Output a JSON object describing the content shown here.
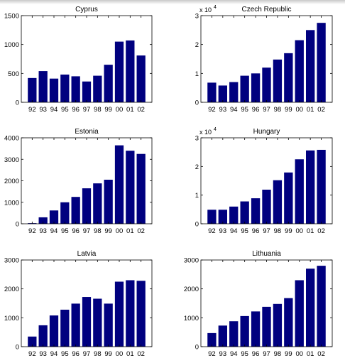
{
  "colors": {
    "bar": "#00007f",
    "axis": "#000000",
    "background": "#ffffff"
  },
  "chart_data": [
    {
      "type": "bar",
      "title": "Cyprus",
      "categories": [
        "92",
        "93",
        "94",
        "95",
        "96",
        "97",
        "98",
        "99",
        "00",
        "01",
        "02"
      ],
      "values": [
        420,
        540,
        410,
        480,
        450,
        360,
        460,
        650,
        1050,
        1070,
        810
      ],
      "ylim": [
        0,
        1500
      ],
      "yticks": [
        0,
        500,
        1000,
        1500
      ],
      "ytick_labels": [
        "0",
        "500",
        "1000",
        "1500"
      ],
      "exponent_label": "",
      "grid": false,
      "xlabel": "",
      "ylabel": ""
    },
    {
      "type": "bar",
      "title": "Czech Republic",
      "categories": [
        "92",
        "93",
        "94",
        "95",
        "96",
        "97",
        "98",
        "99",
        "00",
        "01",
        "02"
      ],
      "values": [
        6800,
        5800,
        7000,
        9200,
        10000,
        12000,
        14800,
        17000,
        21500,
        25000,
        27500
      ],
      "ylim": [
        0,
        30000
      ],
      "yticks": [
        0,
        10000,
        20000,
        30000
      ],
      "ytick_labels": [
        "0",
        "1",
        "2",
        "3"
      ],
      "exponent_label": "x 10",
      "exponent_power": "4",
      "grid": false,
      "xlabel": "",
      "ylabel": ""
    },
    {
      "type": "bar",
      "title": "Estonia",
      "categories": [
        "92",
        "93",
        "94",
        "95",
        "96",
        "97",
        "98",
        "99",
        "00",
        "01",
        "02"
      ],
      "values": [
        30,
        300,
        620,
        1000,
        1250,
        1650,
        1880,
        2050,
        3650,
        3400,
        3250
      ],
      "ylim": [
        0,
        4000
      ],
      "yticks": [
        0,
        1000,
        2000,
        3000,
        4000
      ],
      "ytick_labels": [
        "0",
        "1000",
        "2000",
        "3000",
        "4000"
      ],
      "exponent_label": "",
      "grid": false,
      "xlabel": "",
      "ylabel": ""
    },
    {
      "type": "bar",
      "title": "Hungary",
      "categories": [
        "92",
        "93",
        "94",
        "95",
        "96",
        "97",
        "98",
        "99",
        "00",
        "01",
        "02"
      ],
      "values": [
        4900,
        4900,
        6000,
        7800,
        8900,
        11900,
        15200,
        17900,
        22500,
        25600,
        25800
      ],
      "ylim": [
        0,
        30000
      ],
      "yticks": [
        0,
        10000,
        20000,
        30000
      ],
      "ytick_labels": [
        "0",
        "1",
        "2",
        "3"
      ],
      "exponent_label": "x 10",
      "exponent_power": "4",
      "grid": false,
      "xlabel": "",
      "ylabel": ""
    },
    {
      "type": "bar",
      "title": "Latvia",
      "categories": [
        "92",
        "93",
        "94",
        "95",
        "96",
        "97",
        "98",
        "99",
        "00",
        "01",
        "02"
      ],
      "values": [
        350,
        740,
        1080,
        1280,
        1490,
        1720,
        1660,
        1490,
        2250,
        2300,
        2280
      ],
      "ylim": [
        0,
        3000
      ],
      "yticks": [
        0,
        1000,
        2000,
        3000
      ],
      "ytick_labels": [
        "0",
        "1000",
        "2000",
        "3000"
      ],
      "exponent_label": "",
      "grid": false,
      "xlabel": "",
      "ylabel": ""
    },
    {
      "type": "bar",
      "title": "Lithuania",
      "categories": [
        "92",
        "93",
        "94",
        "95",
        "96",
        "97",
        "98",
        "99",
        "00",
        "01",
        "02"
      ],
      "values": [
        470,
        730,
        880,
        1060,
        1220,
        1380,
        1480,
        1680,
        2300,
        2700,
        2800
      ],
      "ylim": [
        0,
        3000
      ],
      "yticks": [
        0,
        1000,
        2000,
        3000
      ],
      "ytick_labels": [
        "0",
        "1000",
        "2000",
        "3000"
      ],
      "exponent_label": "",
      "grid": false,
      "xlabel": "",
      "ylabel": ""
    }
  ]
}
